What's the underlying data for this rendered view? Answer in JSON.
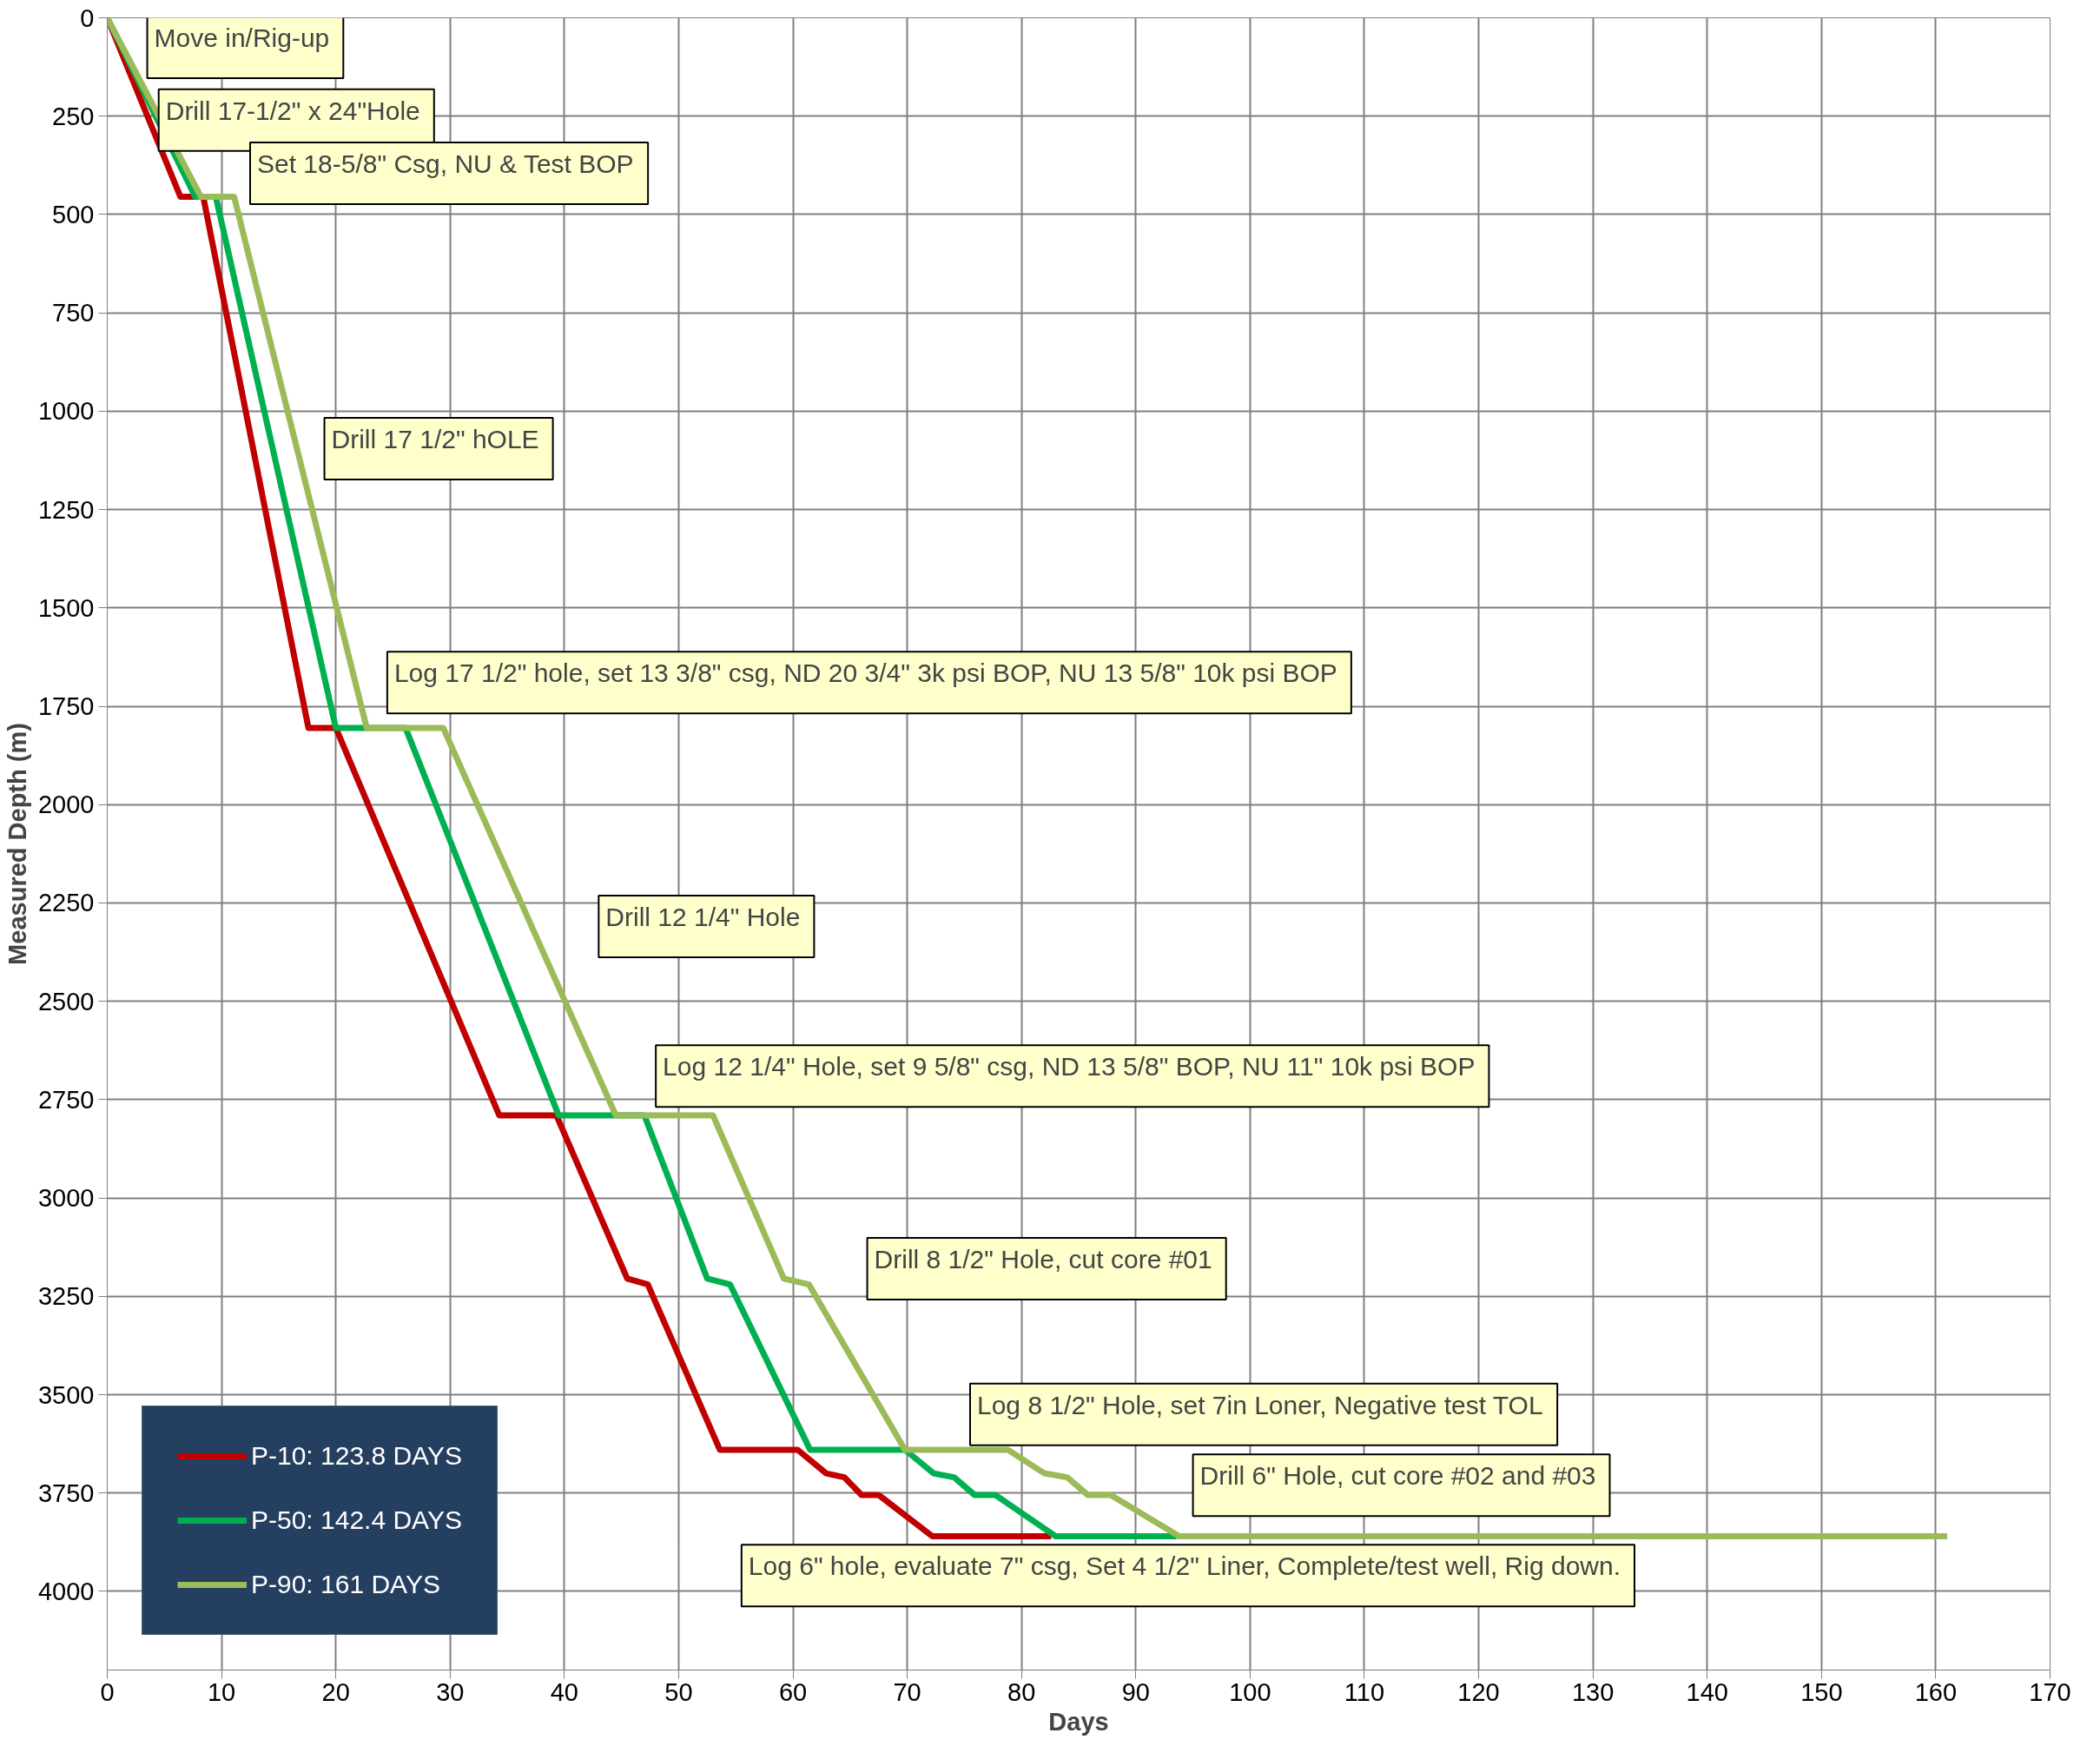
{
  "chart_data": {
    "type": "line",
    "xlabel": "Days",
    "ylabel": "Measured Depth (m)",
    "xlim": [
      0,
      170
    ],
    "xticks": [
      0,
      10,
      20,
      30,
      40,
      50,
      60,
      70,
      80,
      90,
      100,
      110,
      120,
      130,
      140,
      150,
      160,
      170
    ],
    "ylim": [
      4200,
      0
    ],
    "yticks": [
      0,
      250,
      500,
      750,
      1000,
      1250,
      1500,
      1750,
      2000,
      2250,
      2500,
      2750,
      3000,
      3250,
      3500,
      3750,
      4000
    ],
    "grid": true,
    "legend": "bottom left",
    "line_style": "solid",
    "marker": "none",
    "series": [
      {
        "name": "P-10: 123.8 DAYS",
        "color": "#c00000",
        "x": [
          0,
          6.4,
          8.4,
          17.6,
          20.0,
          34.3,
          39.3,
          45.5,
          47.3,
          53.6,
          60.4,
          62.9,
          64.5,
          66.0,
          67.5,
          72.2,
          82.6
        ],
        "values": [
          0,
          455,
          455,
          1805,
          1805,
          2790,
          2790,
          3205,
          3220,
          3640,
          3640,
          3700,
          3710,
          3755,
          3755,
          3860,
          3860
        ]
      },
      {
        "name": "P-50: 142.4 DAYS",
        "color": "#00b050",
        "x": [
          0,
          7.7,
          9.5,
          20.0,
          26.1,
          39.5,
          47.0,
          52.5,
          54.5,
          61.5,
          69.8,
          72.3,
          74.1,
          75.9,
          77.7,
          83.0,
          93.6
        ],
        "values": [
          0,
          455,
          455,
          1805,
          1805,
          2790,
          2790,
          3205,
          3220,
          3640,
          3640,
          3700,
          3710,
          3755,
          3755,
          3860,
          3860
        ]
      },
      {
        "name": "P-90: 161 DAYS",
        "color": "#9bbb59",
        "x": [
          0,
          8.2,
          11.1,
          22.7,
          29.4,
          44.5,
          53.0,
          59.2,
          61.4,
          69.8,
          78.8,
          82.0,
          84.0,
          85.8,
          87.8,
          93.8,
          161
        ],
        "values": [
          0,
          455,
          455,
          1805,
          1805,
          2790,
          2790,
          3205,
          3220,
          3640,
          3640,
          3700,
          3710,
          3755,
          3755,
          3860,
          3860
        ]
      }
    ],
    "annotations": [
      "Move in/Rig-up",
      "Drill 17-1/2\" x 24\"Hole",
      "Set 18-5/8\" Csg, NU & Test BOP",
      "Drill 17 1/2\" hOLE",
      "Log 17 1/2\" hole, set 13 3/8\" csg, ND 20 3/4\" 3k psi BOP, NU 13 5/8\" 10k psi BOP",
      "Drill 12 1/4\" Hole",
      "Log 12 1/4\" Hole, set 9 5/8\" csg, ND 13 5/8\" BOP, NU 11\" 10k psi BOP",
      "Drill 8 1/2\" Hole, cut core #01",
      "Log 8 1/2\" Hole, set 7in Loner, Negative test TOL",
      "Drill 6\" Hole, cut core #02 and #03",
      "Log 6\" hole, evaluate 7\" csg, Set 4 1/2\" Liner, Complete/test well, Rig down."
    ]
  }
}
